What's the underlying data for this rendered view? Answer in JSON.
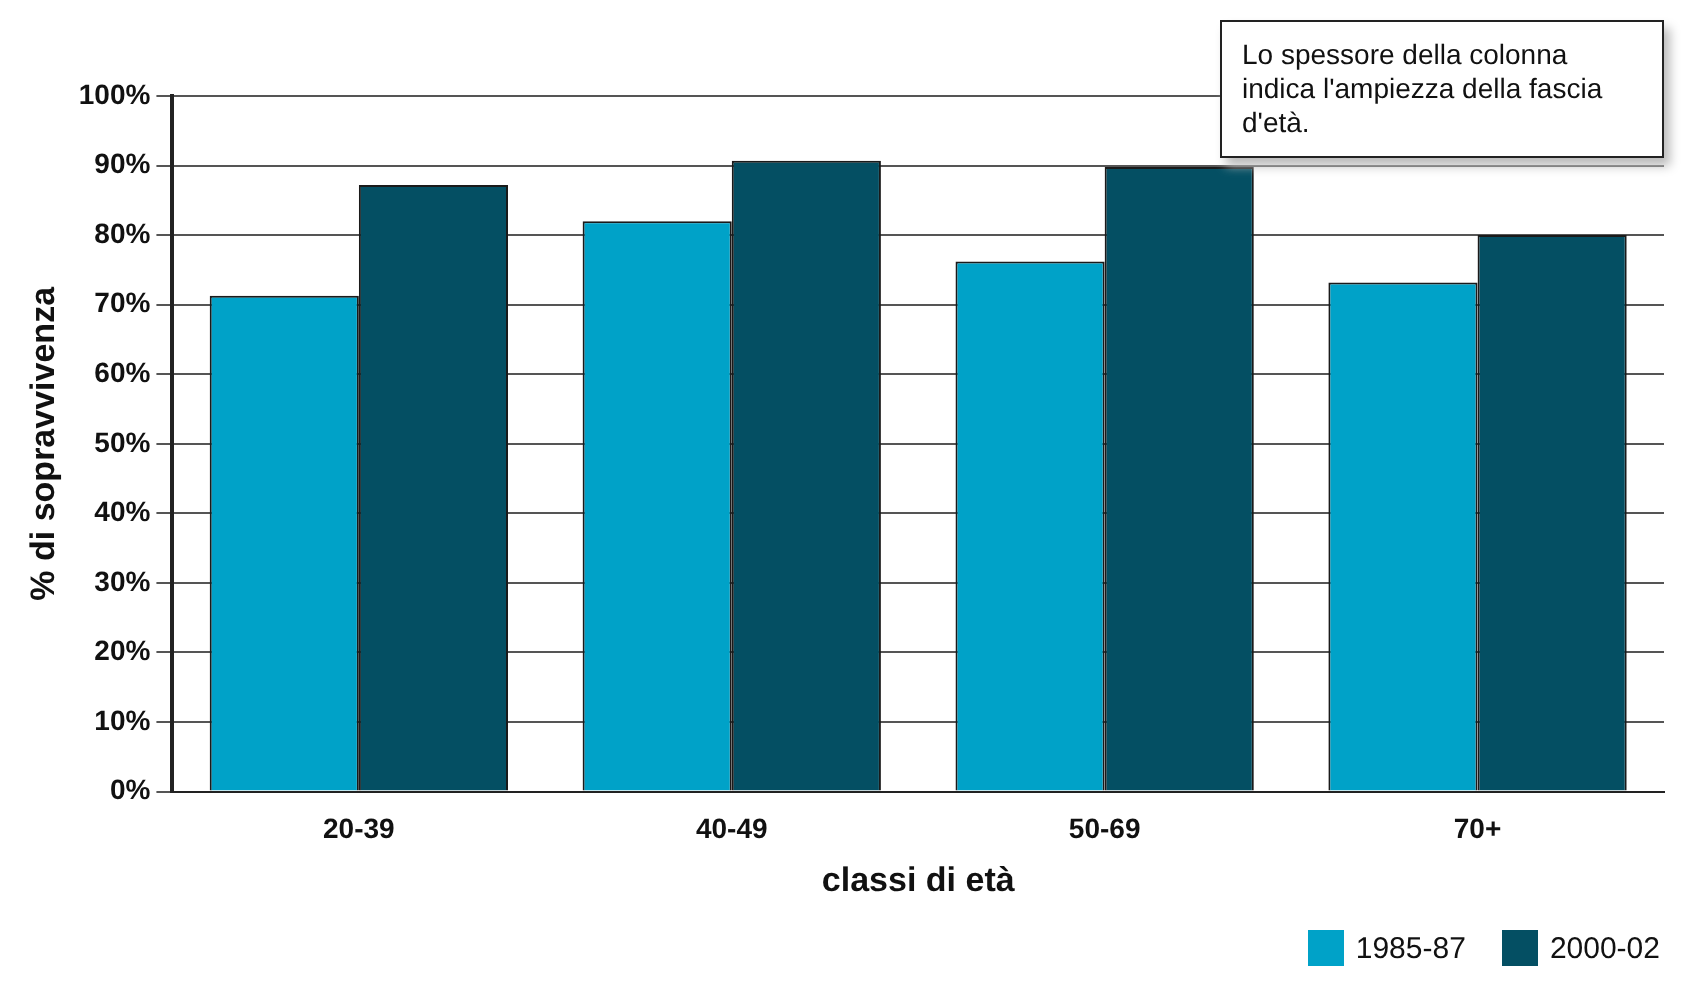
{
  "chart_data": {
    "type": "bar",
    "xlabel": "classi di età",
    "ylabel": "% di sopravvivenza",
    "categories": [
      "20-39",
      "40-49",
      "50-69",
      "70+"
    ],
    "series": [
      {
        "name": "1985-87",
        "color": "#00a2c8",
        "values": [
          71.3,
          82,
          76.2,
          73.2
        ]
      },
      {
        "name": "2000-02",
        "color": "#044f63",
        "values": [
          87.2,
          90.7,
          89.8,
          80
        ]
      }
    ],
    "ylim": [
      0,
      100
    ],
    "yticks": [
      {
        "value": 0,
        "label": "0%"
      },
      {
        "value": 10,
        "label": "10%"
      },
      {
        "value": 20,
        "label": "20%"
      },
      {
        "value": 30,
        "label": "30%"
      },
      {
        "value": 40,
        "label": "40%"
      },
      {
        "value": 50,
        "label": "50%"
      },
      {
        "value": 60,
        "label": "60%"
      },
      {
        "value": 70,
        "label": "70%"
      },
      {
        "value": 80,
        "label": "80%"
      },
      {
        "value": 90,
        "label": "90%"
      },
      {
        "value": 100,
        "label": "100%"
      }
    ],
    "grid": "y",
    "legend": "bottom right",
    "annotations": [
      "Lo spessore della colonna indica l'ampiezza della fascia d'età."
    ]
  }
}
